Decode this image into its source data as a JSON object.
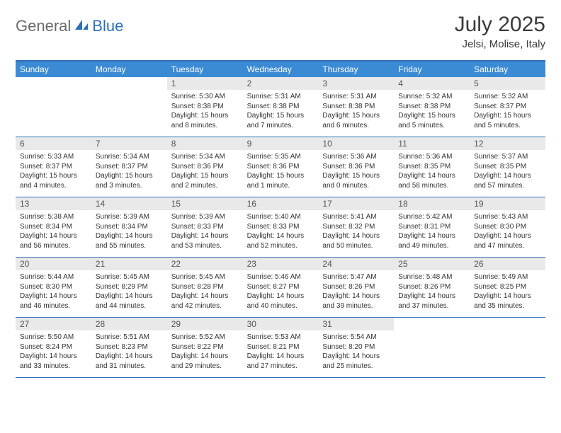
{
  "logo": {
    "text1": "General",
    "text2": "Blue"
  },
  "title": "July 2025",
  "location": "Jelsi, Molise, Italy",
  "colors": {
    "header_bg": "#3b8bd4",
    "border": "#2d6fb6",
    "day_num_bg": "#e9e9e9",
    "logo_gray": "#6a6a6a",
    "logo_blue": "#2d6fb6"
  },
  "weekdays": [
    "Sunday",
    "Monday",
    "Tuesday",
    "Wednesday",
    "Thursday",
    "Friday",
    "Saturday"
  ],
  "weeks": [
    [
      null,
      null,
      {
        "n": "1",
        "sr": "5:30 AM",
        "ss": "8:38 PM",
        "dl": "15 hours and 8 minutes."
      },
      {
        "n": "2",
        "sr": "5:31 AM",
        "ss": "8:38 PM",
        "dl": "15 hours and 7 minutes."
      },
      {
        "n": "3",
        "sr": "5:31 AM",
        "ss": "8:38 PM",
        "dl": "15 hours and 6 minutes."
      },
      {
        "n": "4",
        "sr": "5:32 AM",
        "ss": "8:38 PM",
        "dl": "15 hours and 5 minutes."
      },
      {
        "n": "5",
        "sr": "5:32 AM",
        "ss": "8:37 PM",
        "dl": "15 hours and 5 minutes."
      }
    ],
    [
      {
        "n": "6",
        "sr": "5:33 AM",
        "ss": "8:37 PM",
        "dl": "15 hours and 4 minutes."
      },
      {
        "n": "7",
        "sr": "5:34 AM",
        "ss": "8:37 PM",
        "dl": "15 hours and 3 minutes."
      },
      {
        "n": "8",
        "sr": "5:34 AM",
        "ss": "8:36 PM",
        "dl": "15 hours and 2 minutes."
      },
      {
        "n": "9",
        "sr": "5:35 AM",
        "ss": "8:36 PM",
        "dl": "15 hours and 1 minute."
      },
      {
        "n": "10",
        "sr": "5:36 AM",
        "ss": "8:36 PM",
        "dl": "15 hours and 0 minutes."
      },
      {
        "n": "11",
        "sr": "5:36 AM",
        "ss": "8:35 PM",
        "dl": "14 hours and 58 minutes."
      },
      {
        "n": "12",
        "sr": "5:37 AM",
        "ss": "8:35 PM",
        "dl": "14 hours and 57 minutes."
      }
    ],
    [
      {
        "n": "13",
        "sr": "5:38 AM",
        "ss": "8:34 PM",
        "dl": "14 hours and 56 minutes."
      },
      {
        "n": "14",
        "sr": "5:39 AM",
        "ss": "8:34 PM",
        "dl": "14 hours and 55 minutes."
      },
      {
        "n": "15",
        "sr": "5:39 AM",
        "ss": "8:33 PM",
        "dl": "14 hours and 53 minutes."
      },
      {
        "n": "16",
        "sr": "5:40 AM",
        "ss": "8:33 PM",
        "dl": "14 hours and 52 minutes."
      },
      {
        "n": "17",
        "sr": "5:41 AM",
        "ss": "8:32 PM",
        "dl": "14 hours and 50 minutes."
      },
      {
        "n": "18",
        "sr": "5:42 AM",
        "ss": "8:31 PM",
        "dl": "14 hours and 49 minutes."
      },
      {
        "n": "19",
        "sr": "5:43 AM",
        "ss": "8:30 PM",
        "dl": "14 hours and 47 minutes."
      }
    ],
    [
      {
        "n": "20",
        "sr": "5:44 AM",
        "ss": "8:30 PM",
        "dl": "14 hours and 46 minutes."
      },
      {
        "n": "21",
        "sr": "5:45 AM",
        "ss": "8:29 PM",
        "dl": "14 hours and 44 minutes."
      },
      {
        "n": "22",
        "sr": "5:45 AM",
        "ss": "8:28 PM",
        "dl": "14 hours and 42 minutes."
      },
      {
        "n": "23",
        "sr": "5:46 AM",
        "ss": "8:27 PM",
        "dl": "14 hours and 40 minutes."
      },
      {
        "n": "24",
        "sr": "5:47 AM",
        "ss": "8:26 PM",
        "dl": "14 hours and 39 minutes."
      },
      {
        "n": "25",
        "sr": "5:48 AM",
        "ss": "8:26 PM",
        "dl": "14 hours and 37 minutes."
      },
      {
        "n": "26",
        "sr": "5:49 AM",
        "ss": "8:25 PM",
        "dl": "14 hours and 35 minutes."
      }
    ],
    [
      {
        "n": "27",
        "sr": "5:50 AM",
        "ss": "8:24 PM",
        "dl": "14 hours and 33 minutes."
      },
      {
        "n": "28",
        "sr": "5:51 AM",
        "ss": "8:23 PM",
        "dl": "14 hours and 31 minutes."
      },
      {
        "n": "29",
        "sr": "5:52 AM",
        "ss": "8:22 PM",
        "dl": "14 hours and 29 minutes."
      },
      {
        "n": "30",
        "sr": "5:53 AM",
        "ss": "8:21 PM",
        "dl": "14 hours and 27 minutes."
      },
      {
        "n": "31",
        "sr": "5:54 AM",
        "ss": "8:20 PM",
        "dl": "14 hours and 25 minutes."
      },
      null,
      null
    ]
  ],
  "labels": {
    "sunrise": "Sunrise:",
    "sunset": "Sunset:",
    "daylight": "Daylight:"
  }
}
